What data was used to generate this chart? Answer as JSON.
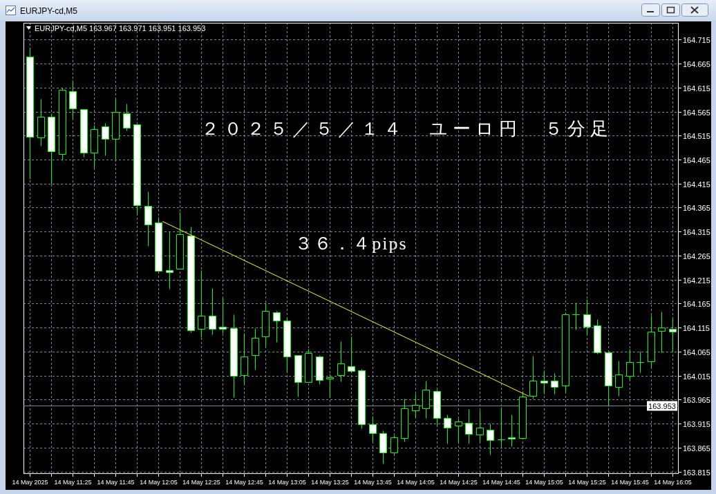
{
  "chart_data": {
    "type": "candlestick",
    "title": "２０２５／５／１４　ユーロ円　５分足",
    "subtitle": "EURJPY-cd,M5  163.967 163.971 163.951 163.953",
    "annotations": [
      "EURJPY-cd,M5",
      "３６．４pips"
    ],
    "x": [
      "2025-05-14T11:05",
      "2025-05-14T11:10",
      "2025-05-14T11:15",
      "2025-05-14T11:20",
      "2025-05-14T11:25",
      "2025-05-14T11:30",
      "2025-05-14T11:35",
      "2025-05-14T11:40",
      "2025-05-14T11:45",
      "2025-05-14T11:50",
      "2025-05-14T11:55",
      "2025-05-14T12:00",
      "2025-05-14T12:05",
      "2025-05-14T12:10",
      "2025-05-14T12:15",
      "2025-05-14T12:20",
      "2025-05-14T12:25",
      "2025-05-14T12:30",
      "2025-05-14T12:35",
      "2025-05-14T12:40",
      "2025-05-14T12:45",
      "2025-05-14T12:50",
      "2025-05-14T12:55",
      "2025-05-14T13:00",
      "2025-05-14T13:05",
      "2025-05-14T13:10",
      "2025-05-14T13:15",
      "2025-05-14T13:20",
      "2025-05-14T13:25",
      "2025-05-14T13:30",
      "2025-05-14T13:35",
      "2025-05-14T13:40",
      "2025-05-14T13:45",
      "2025-05-14T13:50",
      "2025-05-14T13:55",
      "2025-05-14T14:00",
      "2025-05-14T14:05",
      "2025-05-14T14:10",
      "2025-05-14T14:15",
      "2025-05-14T14:20",
      "2025-05-14T14:25",
      "2025-05-14T14:30",
      "2025-05-14T14:35",
      "2025-05-14T14:40",
      "2025-05-14T14:45",
      "2025-05-14T14:50",
      "2025-05-14T14:55",
      "2025-05-14T15:00",
      "2025-05-14T15:05",
      "2025-05-14T15:10",
      "2025-05-14T15:15",
      "2025-05-14T15:20",
      "2025-05-14T15:25",
      "2025-05-14T15:30",
      "2025-05-14T15:35",
      "2025-05-14T15:40",
      "2025-05-14T15:45",
      "2025-05-14T15:50",
      "2025-05-14T15:55",
      "2025-05-14T16:00",
      "2025-05-14T16:05"
    ],
    "ohlc": [
      [
        164.679,
        164.698,
        164.424,
        164.513
      ],
      [
        164.511,
        164.592,
        164.494,
        164.554
      ],
      [
        164.554,
        164.562,
        164.415,
        164.482
      ],
      [
        164.477,
        164.614,
        164.463,
        164.61
      ],
      [
        164.608,
        164.631,
        164.551,
        164.571
      ],
      [
        164.57,
        164.57,
        164.471,
        164.48
      ],
      [
        164.479,
        164.537,
        164.448,
        164.529
      ],
      [
        164.534,
        164.541,
        164.474,
        164.508
      ],
      [
        164.508,
        164.591,
        164.466,
        164.564
      ],
      [
        164.562,
        164.582,
        164.526,
        164.531
      ],
      [
        164.538,
        164.538,
        164.352,
        164.37
      ],
      [
        164.368,
        164.399,
        164.285,
        164.329
      ],
      [
        164.334,
        164.345,
        164.233,
        164.233
      ],
      [
        164.234,
        164.315,
        164.196,
        164.23
      ],
      [
        164.237,
        164.356,
        164.237,
        164.31
      ],
      [
        164.306,
        164.325,
        164.105,
        164.11
      ],
      [
        164.112,
        164.234,
        164.095,
        164.14
      ],
      [
        164.139,
        164.197,
        164.101,
        164.112
      ],
      [
        164.116,
        164.177,
        164.104,
        164.113
      ],
      [
        164.114,
        164.143,
        163.97,
        164.014
      ],
      [
        164.016,
        164.104,
        163.998,
        164.055
      ],
      [
        164.058,
        164.114,
        164.027,
        164.093
      ],
      [
        164.096,
        164.167,
        164.075,
        164.15
      ],
      [
        164.147,
        164.15,
        164.085,
        164.13
      ],
      [
        164.129,
        164.137,
        164.023,
        164.055
      ],
      [
        164.057,
        164.057,
        163.971,
        164.002
      ],
      [
        164.001,
        164.07,
        164.001,
        164.062
      ],
      [
        164.055,
        164.058,
        163.997,
        164.006
      ],
      [
        164.008,
        164.019,
        163.97,
        164.012
      ],
      [
        164.016,
        164.086,
        164.003,
        164.041
      ],
      [
        164.035,
        164.097,
        164.022,
        164.024
      ],
      [
        164.026,
        164.029,
        163.905,
        163.914
      ],
      [
        163.914,
        163.931,
        163.877,
        163.895
      ],
      [
        163.895,
        163.9,
        163.832,
        163.855
      ],
      [
        163.854,
        163.89,
        163.851,
        163.887
      ],
      [
        163.885,
        163.967,
        163.878,
        163.947
      ],
      [
        163.943,
        163.977,
        163.928,
        163.954
      ],
      [
        163.947,
        164.005,
        163.927,
        163.986
      ],
      [
        163.983,
        163.986,
        163.911,
        163.927
      ],
      [
        163.927,
        163.934,
        163.873,
        163.907
      ],
      [
        163.911,
        163.925,
        163.873,
        163.919
      ],
      [
        163.917,
        163.945,
        163.873,
        163.893
      ],
      [
        163.892,
        163.942,
        163.877,
        163.906
      ],
      [
        163.902,
        163.915,
        163.851,
        163.88
      ],
      [
        163.882,
        163.949,
        163.868,
        163.882
      ],
      [
        163.886,
        163.934,
        163.867,
        163.883
      ],
      [
        163.885,
        163.983,
        163.884,
        163.971
      ],
      [
        163.972,
        164.056,
        163.967,
        164.004
      ],
      [
        164.004,
        164.026,
        163.977,
        164.0
      ],
      [
        164.004,
        164.02,
        163.977,
        163.991
      ],
      [
        163.994,
        164.147,
        163.98,
        164.143
      ],
      [
        164.142,
        164.167,
        164.111,
        164.142
      ],
      [
        164.143,
        164.174,
        164.101,
        164.116
      ],
      [
        164.12,
        164.132,
        164.061,
        164.063
      ],
      [
        164.064,
        164.064,
        163.951,
        163.994
      ],
      [
        163.991,
        164.046,
        163.972,
        164.017
      ],
      [
        164.014,
        164.07,
        164.006,
        164.043
      ],
      [
        164.043,
        164.066,
        164.022,
        164.043
      ],
      [
        164.044,
        164.141,
        164.033,
        164.106
      ],
      [
        164.108,
        164.148,
        164.063,
        164.115
      ],
      [
        164.113,
        164.137,
        164.065,
        164.106
      ]
    ],
    "color": "#00ff00",
    "colors": [
      "#ffffff",
      "#000000",
      "#ffffff",
      "#000000",
      "#ffffff",
      "#ffffff",
      "#000000",
      "#ffffff",
      "#000000",
      "#ffffff",
      "#ffffff",
      "#ffffff",
      "#ffffff",
      "#ffffff",
      "#000000",
      "#ffffff",
      "#000000",
      "#ffffff",
      "#ffffff",
      "#ffffff",
      "#000000",
      "#000000",
      "#000000",
      "#ffffff",
      "#ffffff",
      "#ffffff",
      "#000000",
      "#ffffff",
      "#000000",
      "#000000",
      "#ffffff",
      "#ffffff",
      "#ffffff",
      "#ffffff",
      "#000000",
      "#000000",
      "#000000",
      "#000000",
      "#ffffff",
      "#ffffff",
      "#000000",
      "#ffffff",
      "#000000",
      "#ffffff",
      "#00ff00",
      "#ffffff",
      "#000000",
      "#000000",
      "#ffffff",
      "#ffffff",
      "#000000",
      "#00ff00",
      "#ffffff",
      "#ffffff",
      "#ffffff",
      "#000000",
      "#000000",
      "#00ff00",
      "#000000",
      "#000000",
      "#ffffff"
    ],
    "series": [
      {
        "type": "line",
        "x": [
          "2025-05-14T12:07",
          "2025-05-14T14:58"
        ],
        "values": [
          164.336,
          163.972
        ],
        "color": "#ffff00"
      }
    ],
    "xlim": [
      "2025-05-14T11:02",
      "2025-05-14T16:08"
    ],
    "xticks": [
      {
        "value": "2025-05-14T11:05",
        "label": "14 May 2025"
      },
      {
        "value": "2025-05-14T11:15",
        "label": null
      },
      {
        "value": "2025-05-14T11:25",
        "label": "14 May 11:25"
      },
      {
        "value": "2025-05-14T11:35",
        "label": null
      },
      {
        "value": "2025-05-14T11:45",
        "label": "14 May 11:45"
      },
      {
        "value": "2025-05-14T11:55",
        "label": null
      },
      {
        "value": "2025-05-14T12:05",
        "label": "14 May 12:05"
      },
      {
        "value": "2025-05-14T12:15",
        "label": null
      },
      {
        "value": "2025-05-14T12:25",
        "label": "14 May 12:25"
      },
      {
        "value": "2025-05-14T12:35",
        "label": null
      },
      {
        "value": "2025-05-14T12:45",
        "label": "14 May 12:45"
      },
      {
        "value": "2025-05-14T12:55",
        "label": null
      },
      {
        "value": "2025-05-14T13:05",
        "label": "14 May 13:05"
      },
      {
        "value": "2025-05-14T13:15",
        "label": null
      },
      {
        "value": "2025-05-14T13:25",
        "label": "14 May 13:25"
      },
      {
        "value": "2025-05-14T13:35",
        "label": null
      },
      {
        "value": "2025-05-14T13:45",
        "label": "14 May 13:45"
      },
      {
        "value": "2025-05-14T13:55",
        "label": null
      },
      {
        "value": "2025-05-14T14:05",
        "label": "14 May 14:05"
      },
      {
        "value": "2025-05-14T14:15",
        "label": null
      },
      {
        "value": "2025-05-14T14:25",
        "label": "14 May 14:25"
      },
      {
        "value": "2025-05-14T14:35",
        "label": null
      },
      {
        "value": "2025-05-14T14:45",
        "label": "14 May 14:45"
      },
      {
        "value": "2025-05-14T14:55",
        "label": null
      },
      {
        "value": "2025-05-14T15:05",
        "label": "14 May 15:05"
      },
      {
        "value": "2025-05-14T15:15",
        "label": null
      },
      {
        "value": "2025-05-14T15:25",
        "label": "14 May 15:25"
      },
      {
        "value": "2025-05-14T15:35",
        "label": null
      },
      {
        "value": "2025-05-14T15:45",
        "label": "14 May 15:45"
      },
      {
        "value": "2025-05-14T15:55",
        "label": null
      },
      {
        "value": "2025-05-14T16:05",
        "label": "14 May 16:05"
      }
    ],
    "ylim": [
      163.81,
      164.75
    ],
    "yticks": [
      163.815,
      163.865,
      163.915,
      163.965,
      164.015,
      164.065,
      164.115,
      164.165,
      164.215,
      164.265,
      164.315,
      164.365,
      164.415,
      164.465,
      164.515,
      164.565,
      164.615,
      164.665,
      164.715
    ],
    "ref_lines": [
      {
        "axis": "y",
        "value": 163.953,
        "label": "163.953",
        "color": "#778899"
      }
    ],
    "grid": true
  }
}
